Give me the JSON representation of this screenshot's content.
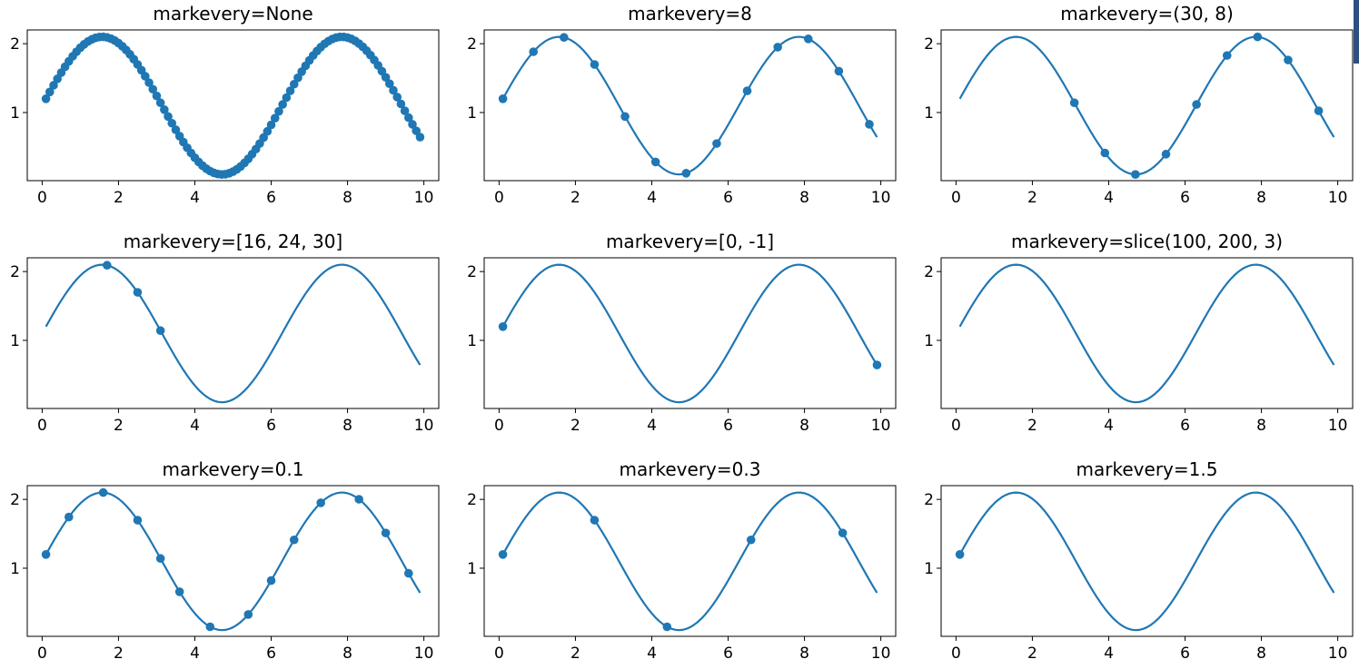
{
  "colors": {
    "series": "#1f77b4",
    "axes": "#000000",
    "background": "#ffffff"
  },
  "chart_data": [
    {
      "type": "line",
      "title": "markevery=None",
      "x_range": [
        0.1,
        9.9
      ],
      "function": "y = sin(x) + 1.1",
      "x_step": 0.1,
      "xlim": [
        -0.39,
        10.39
      ],
      "ylim": [
        0.01,
        2.2
      ],
      "xticks": [
        0,
        2,
        4,
        6,
        8,
        10
      ],
      "yticks": [
        1,
        2
      ],
      "xlabel": "",
      "ylabel": "",
      "marker": "circle",
      "markevery": "None",
      "grid": false
    },
    {
      "type": "line",
      "title": "markevery=8",
      "x_range": [
        0.1,
        9.9
      ],
      "function": "y = sin(x) + 1.1",
      "x_step": 0.1,
      "xlim": [
        -0.39,
        10.39
      ],
      "ylim": [
        0.01,
        2.2
      ],
      "xticks": [
        0,
        2,
        4,
        6,
        8,
        10
      ],
      "yticks": [
        1,
        2
      ],
      "xlabel": "",
      "ylabel": "",
      "marker": "circle",
      "markevery": "8",
      "grid": false
    },
    {
      "type": "line",
      "title": "markevery=(30, 8)",
      "x_range": [
        0.1,
        9.9
      ],
      "function": "y = sin(x) + 1.1",
      "x_step": 0.1,
      "xlim": [
        -0.39,
        10.39
      ],
      "ylim": [
        0.01,
        2.2
      ],
      "xticks": [
        0,
        2,
        4,
        6,
        8,
        10
      ],
      "yticks": [
        1,
        2
      ],
      "xlabel": "",
      "ylabel": "",
      "marker": "circle",
      "markevery": "(30, 8)",
      "grid": false
    },
    {
      "type": "line",
      "title": "markevery=[16, 24, 30]",
      "x_range": [
        0.1,
        9.9
      ],
      "function": "y = sin(x) + 1.1",
      "x_step": 0.1,
      "xlim": [
        -0.39,
        10.39
      ],
      "ylim": [
        0.01,
        2.2
      ],
      "xticks": [
        0,
        2,
        4,
        6,
        8,
        10
      ],
      "yticks": [
        1,
        2
      ],
      "xlabel": "",
      "ylabel": "",
      "marker": "circle",
      "markevery": "[16, 24, 30]",
      "grid": false
    },
    {
      "type": "line",
      "title": "markevery=[0, -1]",
      "x_range": [
        0.1,
        9.9
      ],
      "function": "y = sin(x) + 1.1",
      "x_step": 0.1,
      "xlim": [
        -0.39,
        10.39
      ],
      "ylim": [
        0.01,
        2.2
      ],
      "xticks": [
        0,
        2,
        4,
        6,
        8,
        10
      ],
      "yticks": [
        1,
        2
      ],
      "xlabel": "",
      "ylabel": "",
      "marker": "circle",
      "markevery": "[0, -1]",
      "grid": false
    },
    {
      "type": "line",
      "title": "markevery=slice(100, 200, 3)",
      "x_range": [
        0.1,
        9.9
      ],
      "function": "y = sin(x) + 1.1",
      "x_step": 0.1,
      "xlim": [
        -0.39,
        10.39
      ],
      "ylim": [
        0.01,
        2.2
      ],
      "xticks": [
        0,
        2,
        4,
        6,
        8,
        10
      ],
      "yticks": [
        1,
        2
      ],
      "xlabel": "",
      "ylabel": "",
      "marker": "circle",
      "markevery": "slice(100, 200, 3)",
      "grid": false
    },
    {
      "type": "line",
      "title": "markevery=0.1",
      "x_range": [
        0.1,
        9.9
      ],
      "function": "y = sin(x) + 1.1",
      "x_step": 0.1,
      "xlim": [
        -0.39,
        10.39
      ],
      "ylim": [
        0.01,
        2.2
      ],
      "xticks": [
        0,
        2,
        4,
        6,
        8,
        10
      ],
      "yticks": [
        1,
        2
      ],
      "xlabel": "",
      "ylabel": "",
      "marker": "circle",
      "markevery": "0.1",
      "grid": false
    },
    {
      "type": "line",
      "title": "markevery=0.3",
      "x_range": [
        0.1,
        9.9
      ],
      "function": "y = sin(x) + 1.1",
      "x_step": 0.1,
      "xlim": [
        -0.39,
        10.39
      ],
      "ylim": [
        0.01,
        2.2
      ],
      "xticks": [
        0,
        2,
        4,
        6,
        8,
        10
      ],
      "yticks": [
        1,
        2
      ],
      "xlabel": "",
      "ylabel": "",
      "marker": "circle",
      "markevery": "0.3",
      "grid": false
    },
    {
      "type": "line",
      "title": "markevery=1.5",
      "x_range": [
        0.1,
        9.9
      ],
      "function": "y = sin(x) + 1.1",
      "x_step": 0.1,
      "xlim": [
        -0.39,
        10.39
      ],
      "ylim": [
        0.01,
        2.2
      ],
      "xticks": [
        0,
        2,
        4,
        6,
        8,
        10
      ],
      "yticks": [
        1,
        2
      ],
      "xlabel": "",
      "ylabel": "",
      "marker": "circle",
      "markevery": "1.5",
      "grid": false
    }
  ]
}
